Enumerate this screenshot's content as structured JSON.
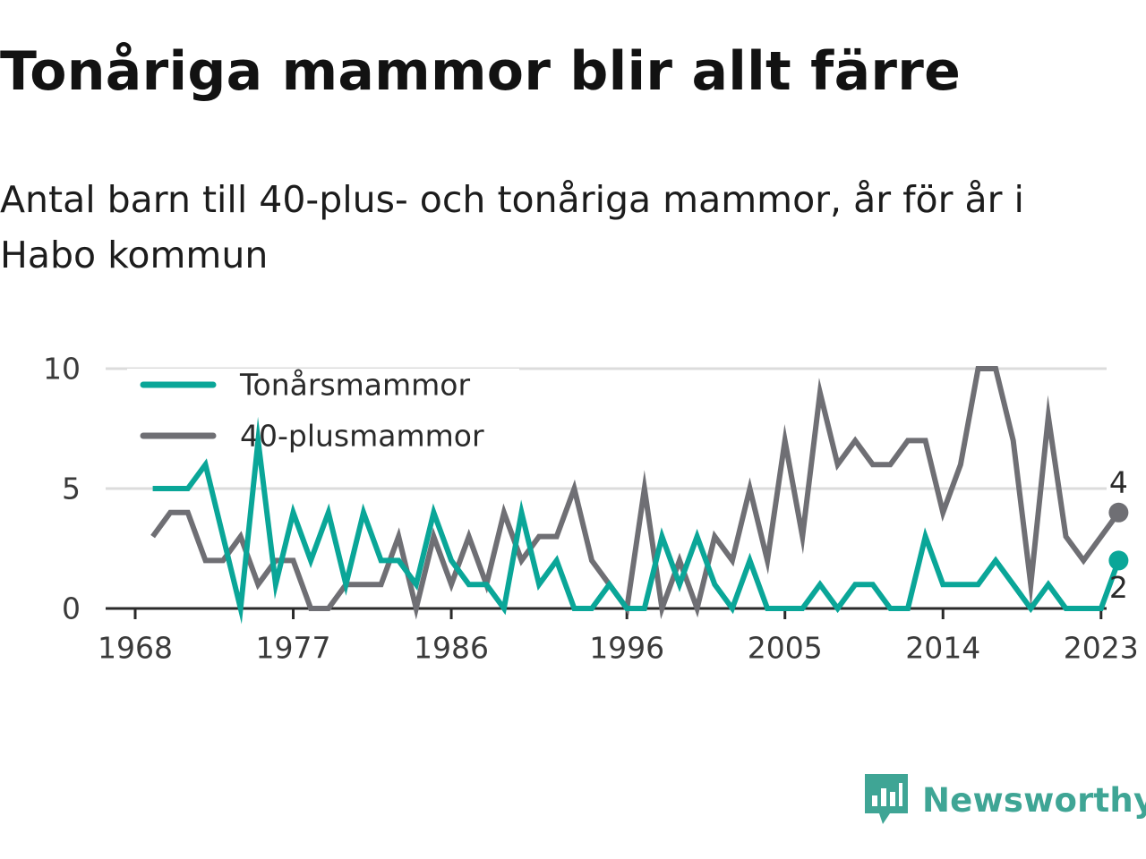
{
  "title": "Tonåriga mammor blir allt färre",
  "subtitle": "Antal barn till 40-plus- och tonåriga mammor, år för år i Habo kommun",
  "brand": {
    "name": "Newsworthy",
    "icon": "newsworthy-logo-icon",
    "color": "#3fa595"
  },
  "chart_data": {
    "type": "line",
    "x": [
      1969,
      1970,
      1971,
      1972,
      1973,
      1974,
      1975,
      1976,
      1977,
      1978,
      1979,
      1980,
      1981,
      1982,
      1983,
      1984,
      1985,
      1986,
      1987,
      1988,
      1989,
      1990,
      1991,
      1992,
      1993,
      1994,
      1995,
      1996,
      1997,
      1998,
      1999,
      2000,
      2001,
      2002,
      2003,
      2004,
      2005,
      2006,
      2007,
      2008,
      2009,
      2010,
      2011,
      2012,
      2013,
      2014,
      2015,
      2016,
      2017,
      2018,
      2019,
      2020,
      2021,
      2022,
      2023,
      2024
    ],
    "x_ticks": [
      "1968",
      "1977",
      "1986",
      "1996",
      "2005",
      "2014",
      "2023"
    ],
    "x_tick_values": [
      1968,
      1977,
      1986,
      1996,
      2005,
      2014,
      2023
    ],
    "xlim": [
      1968,
      2025
    ],
    "ylim": [
      0,
      10
    ],
    "y_ticks": [
      "0",
      "5",
      "10"
    ],
    "y_tick_values": [
      0,
      5,
      10
    ],
    "grid": true,
    "legend": "top-left",
    "series": [
      {
        "name": "Tonårsmammor",
        "color": "#0aa698",
        "values": [
          5,
          5,
          5,
          6,
          3,
          0,
          7,
          1,
          4,
          2,
          4,
          1,
          4,
          2,
          2,
          1,
          4,
          2,
          1,
          1,
          0,
          4,
          1,
          2,
          0,
          0,
          1,
          0,
          0,
          3,
          1,
          3,
          1,
          0,
          2,
          0,
          0,
          0,
          1,
          0,
          1,
          1,
          0,
          0,
          3,
          1,
          1,
          1,
          2,
          1,
          0,
          1,
          0,
          0,
          0,
          2
        ],
        "end_label": "2"
      },
      {
        "name": "40-plusmammor",
        "color": "#6f6f74",
        "values": [
          3,
          4,
          4,
          2,
          2,
          3,
          1,
          2,
          2,
          0,
          0,
          1,
          1,
          1,
          3,
          0,
          3,
          1,
          3,
          1,
          4,
          2,
          3,
          3,
          5,
          2,
          1,
          0,
          5,
          0,
          2,
          0,
          3,
          2,
          5,
          2,
          7,
          3,
          9,
          6,
          7,
          6,
          6,
          7,
          7,
          4,
          6,
          10,
          10,
          7,
          1,
          8,
          3,
          2,
          3,
          4
        ],
        "end_label": "4"
      }
    ]
  }
}
